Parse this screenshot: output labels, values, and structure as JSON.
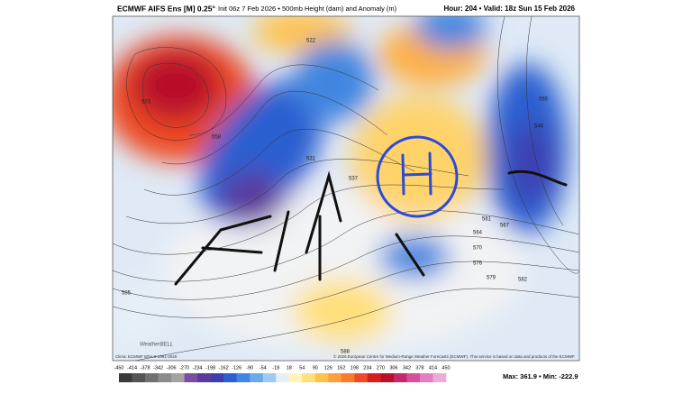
{
  "header": {
    "title": "ECMWF AIFS Ens [M] 0.25°",
    "subtitle": "Init 06z 7 Feb 2026 • 500mb Height (dam) and Anomaly (m)",
    "valid": "Hour: 204 • Valid: 18z Sun 15 Feb 2026"
  },
  "map": {
    "contour_labels": [
      "573",
      "522",
      "558",
      "531",
      "537",
      "561",
      "564",
      "567",
      "570",
      "576",
      "579",
      "582",
      "585",
      "588",
      "546",
      "555"
    ],
    "logo": "WeatherBELL",
    "clima": "Clima: ECMWF ERA-5 1991-2020",
    "copyright": "© 2026 European Centre for Medium-Range Weather Forecasts (ECMWF). This service is based on data and products of the ECMWF."
  },
  "colorbar": {
    "ticks": [
      -450,
      -414,
      -378,
      -342,
      -306,
      -270,
      -234,
      -198,
      -162,
      -126,
      -90,
      -54,
      -18,
      18,
      54,
      90,
      126,
      162,
      198,
      234,
      270,
      306,
      342,
      378,
      414,
      450
    ],
    "colors": [
      "#3a3a3a",
      "#555555",
      "#707070",
      "#8a8a8a",
      "#a3a3a3",
      "#7a4fa0",
      "#5b3a9c",
      "#3d3fb0",
      "#2c5fd0",
      "#3f86e0",
      "#69a9ec",
      "#9fcaf4",
      "#e6eef6",
      "#fff3b8",
      "#ffe07a",
      "#ffc34d",
      "#ff9e3a",
      "#fb7a2c",
      "#ee4a24",
      "#d61e1e",
      "#b8102a",
      "#c42a6a",
      "#d6509a",
      "#e47fbf",
      "#eeaad8"
    ]
  },
  "stats": "Max: 361.9 • Min: -222.9"
}
